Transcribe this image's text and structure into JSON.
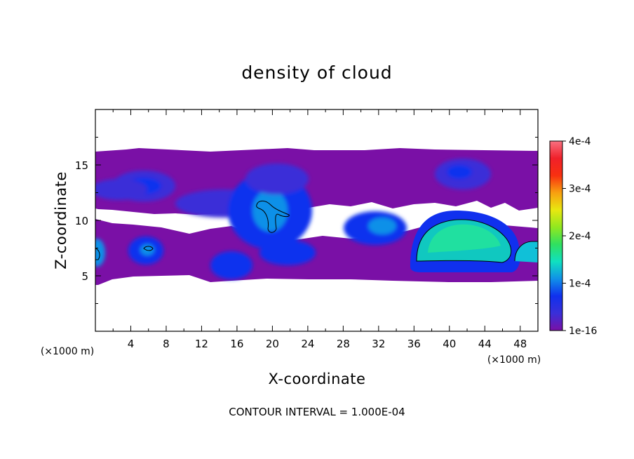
{
  "chart_data": {
    "type": "heatmap",
    "title": "density of cloud",
    "xlabel": "X-coordinate",
    "ylabel": "Z-coordinate",
    "x_unit": "(×1000 m)",
    "y_unit": "(×1000 m)",
    "xlim": [
      0,
      50
    ],
    "ylim": [
      0,
      20
    ],
    "x_ticks": [
      4,
      8,
      12,
      16,
      20,
      24,
      28,
      32,
      36,
      40,
      44,
      48
    ],
    "x_tick_labels": [
      "4",
      "8",
      "12",
      "16",
      "20",
      "24",
      "28",
      "32",
      "36",
      "40",
      "44",
      "48"
    ],
    "y_ticks": [
      5,
      10,
      15
    ],
    "y_tick_labels": [
      "5",
      "10",
      "15"
    ],
    "grid": false,
    "colorbar": {
      "min": 1e-16,
      "max": 0.0004,
      "ticks": [
        1e-16,
        0.0001,
        0.0002,
        0.0003,
        0.0004
      ],
      "tick_labels": [
        "1e-16",
        "1e-4",
        "2e-4",
        "3e-4",
        "4e-4"
      ],
      "colors": [
        "#7a10a6",
        "#3a2fd8",
        "#1030ee",
        "#1090e8",
        "#10e0c0",
        "#30e060",
        "#90e820",
        "#e8e810",
        "#f8a010",
        "#f83010",
        "#f0202a",
        "#f87080"
      ]
    },
    "contour_interval_label": "CONTOUR INTERVAL = 1.000E-04",
    "cloud_layer": {
      "z_bottom": 5,
      "z_top": 16
    },
    "cells": [
      {
        "x": 1,
        "z": 13,
        "value": 2e-05
      },
      {
        "x": 5.5,
        "z": 13,
        "value": 5e-05
      },
      {
        "x": 6,
        "z": 7.3,
        "value": 8e-05
      },
      {
        "x": 14,
        "z": 11.5,
        "value": 4e-05
      },
      {
        "x": 19.5,
        "z": 12,
        "value": 9e-05
      },
      {
        "x": 19.8,
        "z": 10,
        "value": 0.000105
      },
      {
        "x": 16,
        "z": 6,
        "value": 5e-05
      },
      {
        "x": 21,
        "z": 7,
        "value": 6e-05
      },
      {
        "x": 31,
        "z": 9,
        "value": 7e-05
      },
      {
        "x": 34,
        "z": 9.5,
        "value": 8e-05
      },
      {
        "x": 41,
        "z": 8,
        "value": 0.00016
      },
      {
        "x": 48.5,
        "z": 7,
        "value": 0.00012
      },
      {
        "x": 0.3,
        "z": 7.3,
        "value": 0.00013
      },
      {
        "x": 41.5,
        "z": 14,
        "value": 3e-05
      }
    ]
  }
}
